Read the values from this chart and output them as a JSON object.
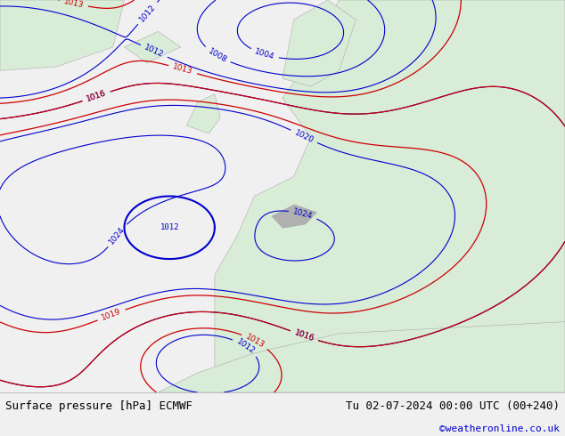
{
  "title_left": "Surface pressure [hPa] ECMWF",
  "title_right": "Tu 02-07-2024 00:00 UTC (00+240)",
  "credit": "©weatheronline.co.uk",
  "bg_color": "#f0f0f0",
  "map_bg": "#e8f4e8",
  "land_color": "#d8ecd8",
  "sea_color": "#ddeeff",
  "bottom_bar_color": "#e8e8e8",
  "blue_contour_color": "#0000cc",
  "red_contour_color": "#cc0000",
  "black_contour_color": "#000000",
  "credit_color": "#0000cc",
  "label_fontsize": 8,
  "title_fontsize": 9,
  "credit_fontsize": 8
}
